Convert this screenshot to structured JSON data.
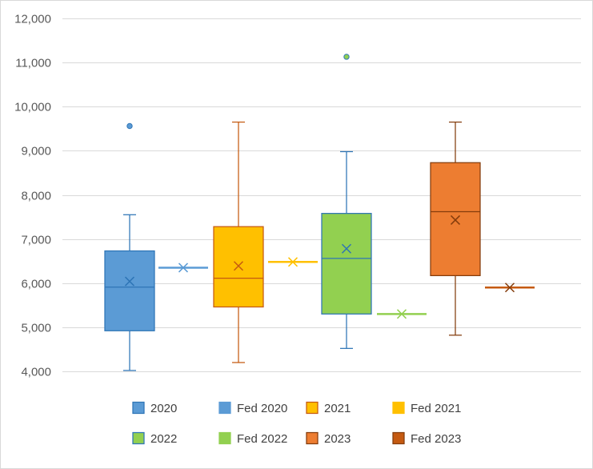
{
  "chart_data": {
    "type": "box",
    "title": "",
    "xlabel": "",
    "ylabel": "",
    "ylim": [
      4000,
      12000
    ],
    "ytick_step": 1000,
    "yticks": [
      "4,000",
      "5,000",
      "6,000",
      "7,000",
      "8,000",
      "9,000",
      "10,000",
      "11,000",
      "12,000"
    ],
    "grid": true,
    "legend_position": "bottom",
    "series": [
      {
        "name": "2020",
        "kind": "box",
        "color": "#5b9bd5",
        "edge": "#2e75b6",
        "min": 4020,
        "q1": 4920,
        "median": 5910,
        "q3": 6730,
        "max": 7550,
        "mean": 6040,
        "outliers": [
          9560
        ]
      },
      {
        "name": "Fed 2020",
        "kind": "flat",
        "color": "#5b9bd5",
        "edge": "#5b9bd5",
        "value": 6350,
        "mean": 6350
      },
      {
        "name": "2021",
        "kind": "box",
        "color": "#ffc000",
        "edge": "#c55a11",
        "min": 4200,
        "q1": 5460,
        "median": 6110,
        "q3": 7280,
        "max": 9650,
        "mean": 6390,
        "outliers": []
      },
      {
        "name": "Fed 2021",
        "kind": "flat",
        "color": "#ffc000",
        "edge": "#ffc000",
        "value": 6480,
        "mean": 6480
      },
      {
        "name": "2022",
        "kind": "box",
        "color": "#92d050",
        "edge": "#2e75b6",
        "min": 4520,
        "q1": 5300,
        "median": 6560,
        "q3": 7580,
        "max": 8980,
        "mean": 6780,
        "outliers": [
          11130
        ]
      },
      {
        "name": "Fed 2022",
        "kind": "flat",
        "color": "#92d050",
        "edge": "#92d050",
        "value": 5300,
        "mean": 5300
      },
      {
        "name": "2023",
        "kind": "box",
        "color": "#ed7d31",
        "edge": "#843c0c",
        "min": 4820,
        "q1": 6170,
        "median": 7620,
        "q3": 8730,
        "max": 9650,
        "mean": 7430,
        "outliers": []
      },
      {
        "name": "Fed 2023",
        "kind": "flat",
        "color": "#c55a11",
        "edge": "#843c0c",
        "value": 5900,
        "mean": 5900
      }
    ]
  }
}
